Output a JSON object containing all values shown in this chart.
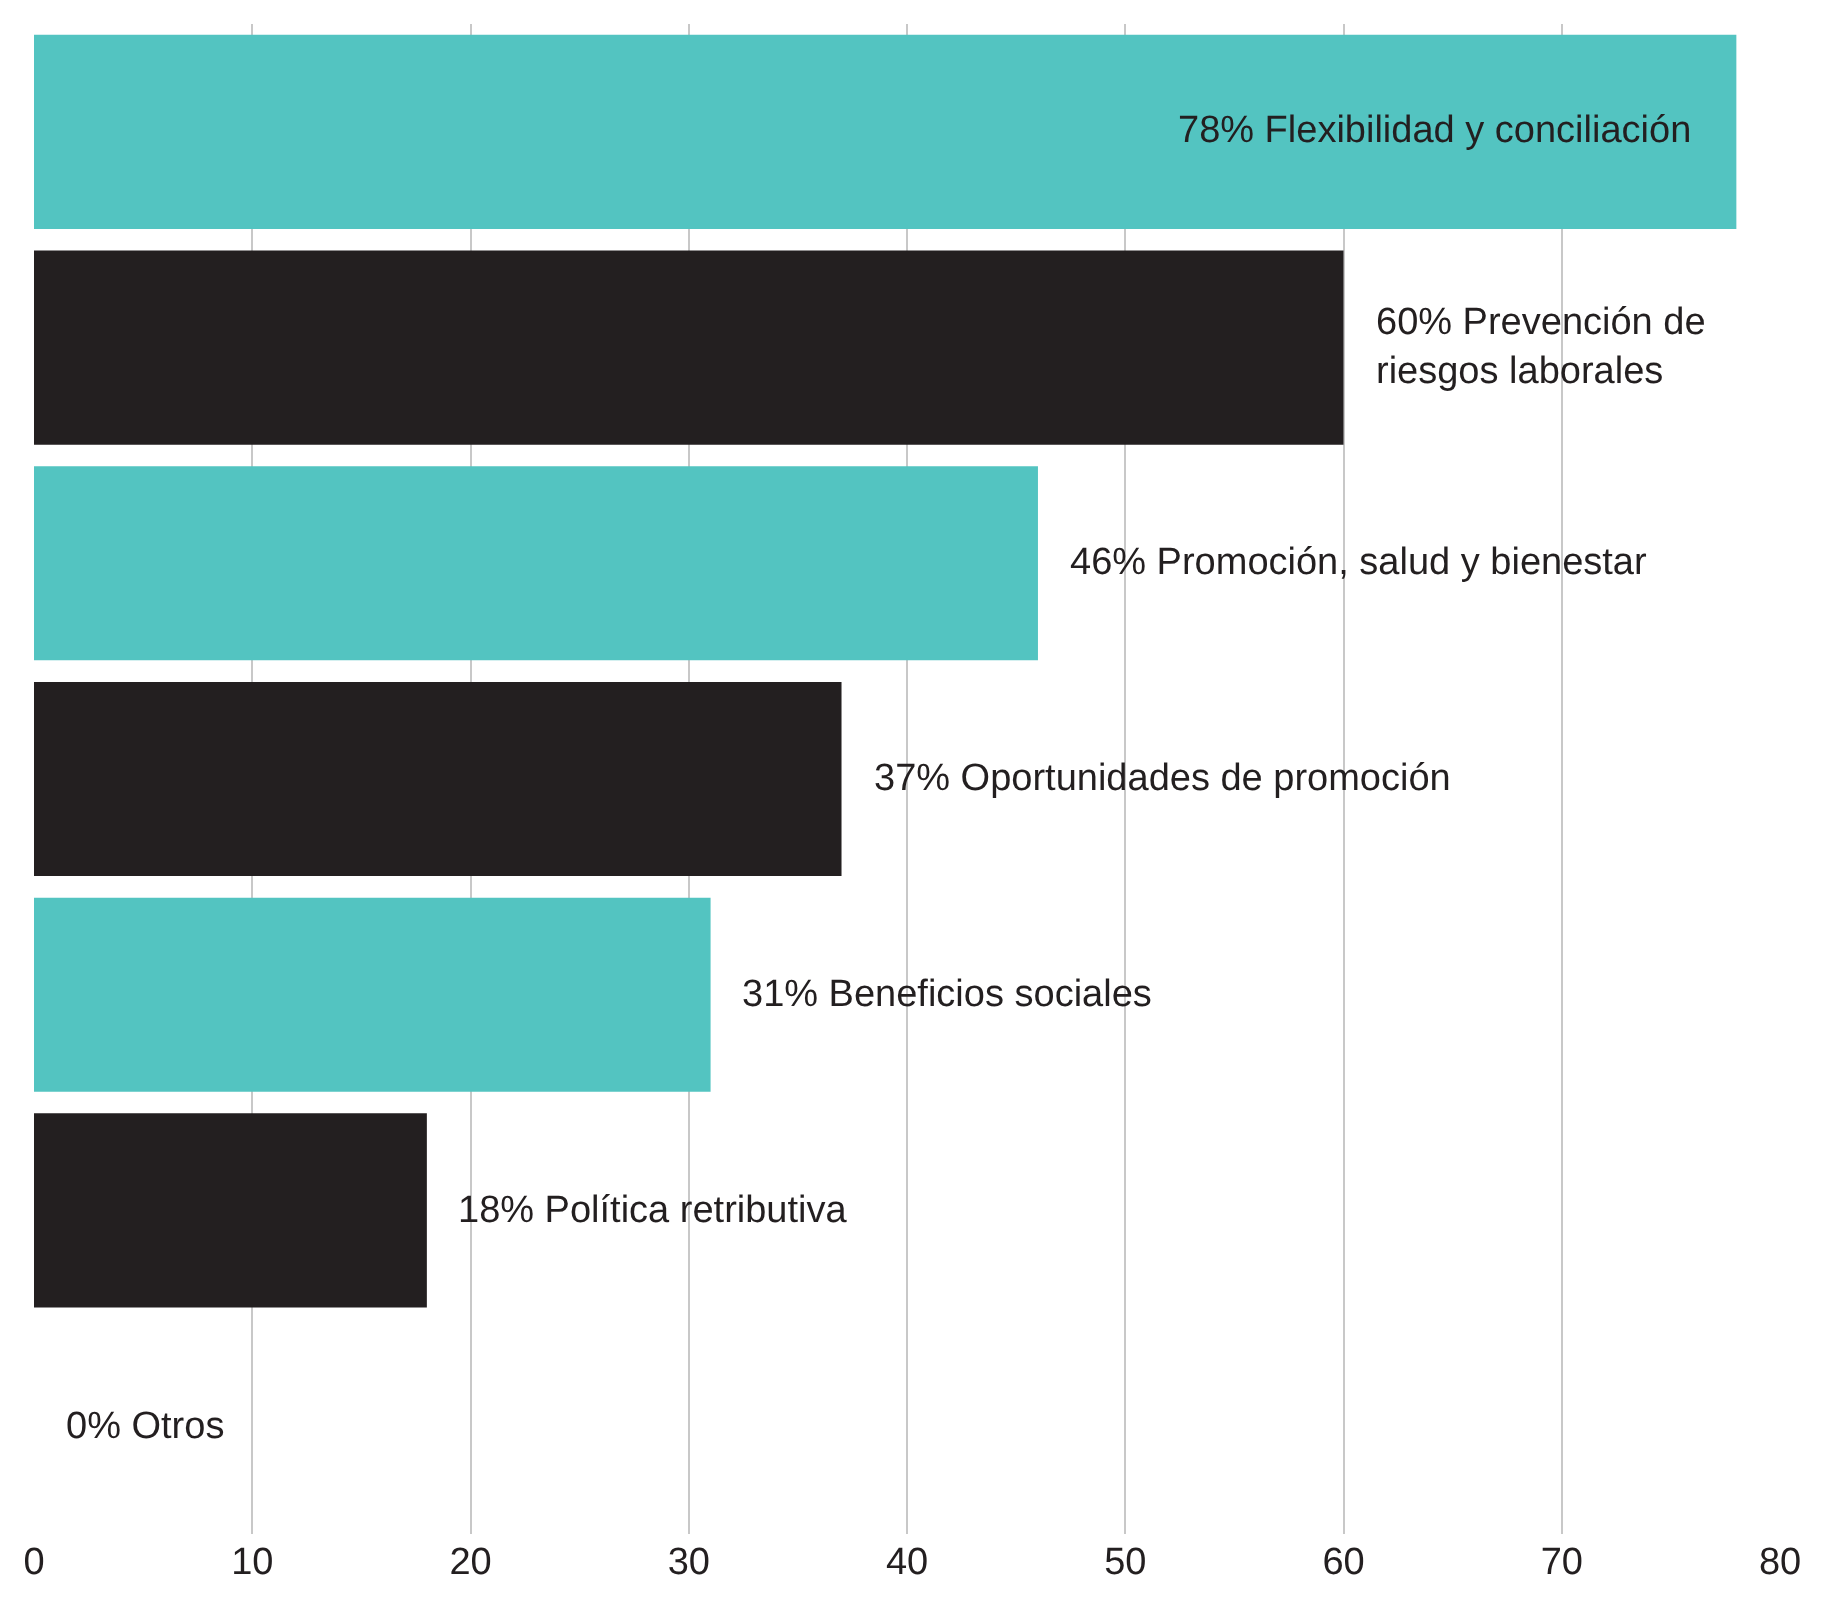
{
  "chart_data": {
    "type": "bar",
    "orientation": "horizontal",
    "categories": [
      "Flexibilidad y conciliación",
      "Prevención de riesgos laborales",
      "Promoción, salud y bienestar",
      "Oportunidades de promoción",
      "Beneficios sociales",
      "Política retributiva",
      "Otros"
    ],
    "values": [
      78,
      60,
      46,
      37,
      31,
      18,
      0
    ],
    "value_labels": [
      "78%",
      "60%",
      "46%",
      "37%",
      "31%",
      "18%",
      "0%"
    ],
    "colors": [
      "#53c4c1",
      "#231f20",
      "#53c4c1",
      "#231f20",
      "#53c4c1",
      "#231f20",
      "#53c4c1"
    ],
    "xlim": [
      0,
      80
    ],
    "xticks": [
      0,
      10,
      20,
      30,
      40,
      50,
      60,
      70,
      80
    ],
    "grid": "x",
    "legend": false,
    "tick_labels": "x"
  }
}
